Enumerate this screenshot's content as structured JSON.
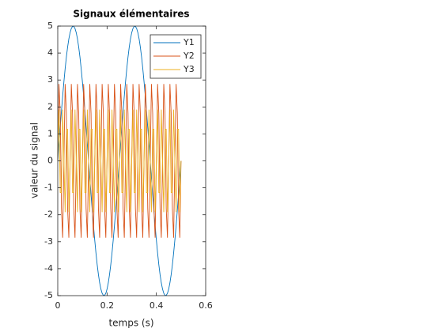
{
  "chart_data": {
    "type": "line",
    "title": "Signaux élémentaires",
    "xlabel": "temps (s)",
    "ylabel": "valeur du signal",
    "x": [
      0,
      0.005,
      0.01,
      0.015,
      0.02,
      0.025,
      0.03,
      0.035,
      0.04,
      0.045,
      0.05,
      0.055,
      0.06,
      0.065,
      0.07,
      0.075,
      0.08,
      0.085,
      0.09,
      0.095,
      0.1,
      0.105,
      0.11,
      0.115,
      0.12,
      0.125,
      0.13,
      0.135,
      0.14,
      0.145,
      0.15,
      0.155,
      0.16,
      0.165,
      0.17,
      0.175,
      0.18,
      0.185,
      0.19,
      0.195,
      0.2,
      0.205,
      0.21,
      0.215,
      0.22,
      0.225,
      0.23,
      0.235,
      0.24,
      0.245,
      0.25,
      0.255,
      0.26,
      0.265,
      0.27,
      0.275,
      0.28,
      0.285,
      0.29,
      0.295,
      0.3,
      0.305,
      0.31,
      0.315,
      0.32,
      0.325,
      0.33,
      0.335,
      0.34,
      0.345,
      0.35,
      0.355,
      0.36,
      0.365,
      0.37,
      0.375,
      0.38,
      0.385,
      0.39,
      0.395,
      0.4,
      0.405,
      0.41,
      0.415,
      0.42,
      0.425,
      0.43,
      0.435,
      0.44,
      0.445,
      0.45,
      0.455,
      0.46,
      0.465,
      0.47,
      0.475,
      0.48,
      0.485,
      0.49,
      0.495,
      0.5
    ],
    "series": [
      {
        "name": "Y1",
        "color": "#0072BD",
        "values": [
          0,
          0.627,
          1.243,
          1.841,
          2.409,
          2.939,
          3.423,
          3.853,
          4.222,
          4.524,
          4.755,
          4.911,
          4.99,
          4.99,
          4.911,
          4.755,
          4.524,
          4.222,
          3.853,
          3.423,
          2.939,
          2.409,
          1.841,
          1.243,
          0.627,
          0,
          -0.627,
          -1.243,
          -1.841,
          -2.409,
          -2.939,
          -3.423,
          -3.853,
          -4.222,
          -4.524,
          -4.755,
          -4.911,
          -4.99,
          -4.99,
          -4.911,
          -4.755,
          -4.524,
          -4.222,
          -3.853,
          -3.423,
          -2.939,
          -2.409,
          -1.841,
          -1.243,
          -0.627,
          0,
          0.627,
          1.243,
          1.841,
          2.409,
          2.939,
          3.423,
          3.853,
          4.222,
          4.524,
          4.755,
          4.911,
          4.99,
          4.99,
          4.911,
          4.755,
          4.524,
          4.222,
          3.853,
          3.423,
          2.939,
          2.409,
          1.841,
          1.243,
          0.627,
          0,
          -0.627,
          -1.243,
          -1.841,
          -2.409,
          -2.939,
          -3.423,
          -3.853,
          -4.222,
          -4.524,
          -4.755,
          -4.911,
          -4.99,
          -4.99,
          -4.911,
          -4.755,
          -4.524,
          -4.222,
          -3.853,
          -3.423,
          -2.939,
          -2.409,
          -1.841,
          -1.243,
          -0.627,
          0
        ]
      },
      {
        "name": "Y2",
        "color": "#D95319",
        "values": [
          0,
          2.853,
          1.763,
          -1.763,
          -2.853,
          0,
          2.853,
          1.763,
          -1.763,
          -2.853,
          0,
          2.853,
          1.763,
          -1.763,
          -2.853,
          0,
          2.853,
          1.763,
          -1.763,
          -2.853,
          0,
          2.853,
          1.763,
          -1.763,
          -2.853,
          0,
          2.853,
          1.763,
          -1.763,
          -2.853,
          0,
          2.853,
          1.763,
          -1.763,
          -2.853,
          0,
          2.853,
          1.763,
          -1.763,
          -2.853,
          0,
          2.853,
          1.763,
          -1.763,
          -2.853,
          0,
          2.853,
          1.763,
          -1.763,
          -2.853,
          0,
          2.853,
          1.763,
          -1.763,
          -2.853,
          0,
          2.853,
          1.763,
          -1.763,
          -2.853,
          0,
          2.853,
          1.763,
          -1.763,
          -2.853,
          0,
          2.853,
          1.763,
          -1.763,
          -2.853,
          0,
          2.853,
          1.763,
          -1.763,
          -2.853,
          0,
          2.853,
          1.763,
          -1.763,
          -2.853,
          0,
          2.853,
          1.763,
          -1.763,
          -2.853,
          0,
          2.853,
          1.763,
          -1.763,
          -2.853,
          0,
          2.853,
          1.763,
          -1.763,
          -2.853,
          0,
          2.853,
          1.763,
          -1.763,
          -2.853,
          0
        ]
      },
      {
        "name": "Y3",
        "color": "#EDB120",
        "values": [
          0,
          1.902,
          -1.176,
          -1.176,
          1.902,
          0,
          -1.902,
          1.176,
          1.176,
          -1.902,
          0,
          1.902,
          -1.176,
          -1.176,
          1.902,
          0,
          -1.902,
          1.176,
          1.176,
          -1.902,
          0,
          1.902,
          -1.176,
          -1.176,
          1.902,
          0,
          -1.902,
          1.176,
          1.176,
          -1.902,
          0,
          1.902,
          -1.176,
          -1.176,
          1.902,
          0,
          -1.902,
          1.176,
          1.176,
          -1.902,
          0,
          1.902,
          -1.176,
          -1.176,
          1.902,
          0,
          -1.902,
          1.176,
          1.176,
          -1.902,
          0,
          1.902,
          -1.176,
          -1.176,
          1.902,
          0,
          -1.902,
          1.176,
          1.176,
          -1.902,
          0,
          1.902,
          -1.176,
          -1.176,
          1.902,
          0,
          -1.902,
          1.176,
          1.176,
          -1.902,
          0,
          1.902,
          -1.176,
          -1.176,
          1.902,
          0,
          -1.902,
          1.176,
          1.176,
          -1.902,
          0,
          1.902,
          -1.176,
          -1.176,
          1.902,
          0,
          -1.902,
          1.176,
          1.176,
          -1.902,
          0,
          1.902,
          -1.176,
          -1.176,
          1.902,
          0,
          -1.902,
          1.176,
          1.176,
          -1.902,
          0
        ]
      }
    ],
    "xlim": [
      0,
      0.6
    ],
    "xticks": [
      0,
      0.2,
      0.4,
      0.6
    ],
    "ylim": [
      -5,
      5
    ],
    "yticks": [
      -5,
      -4,
      -3,
      -2,
      -1,
      0,
      1,
      2,
      3,
      4,
      5
    ],
    "grid": false,
    "legend": "northeast"
  }
}
